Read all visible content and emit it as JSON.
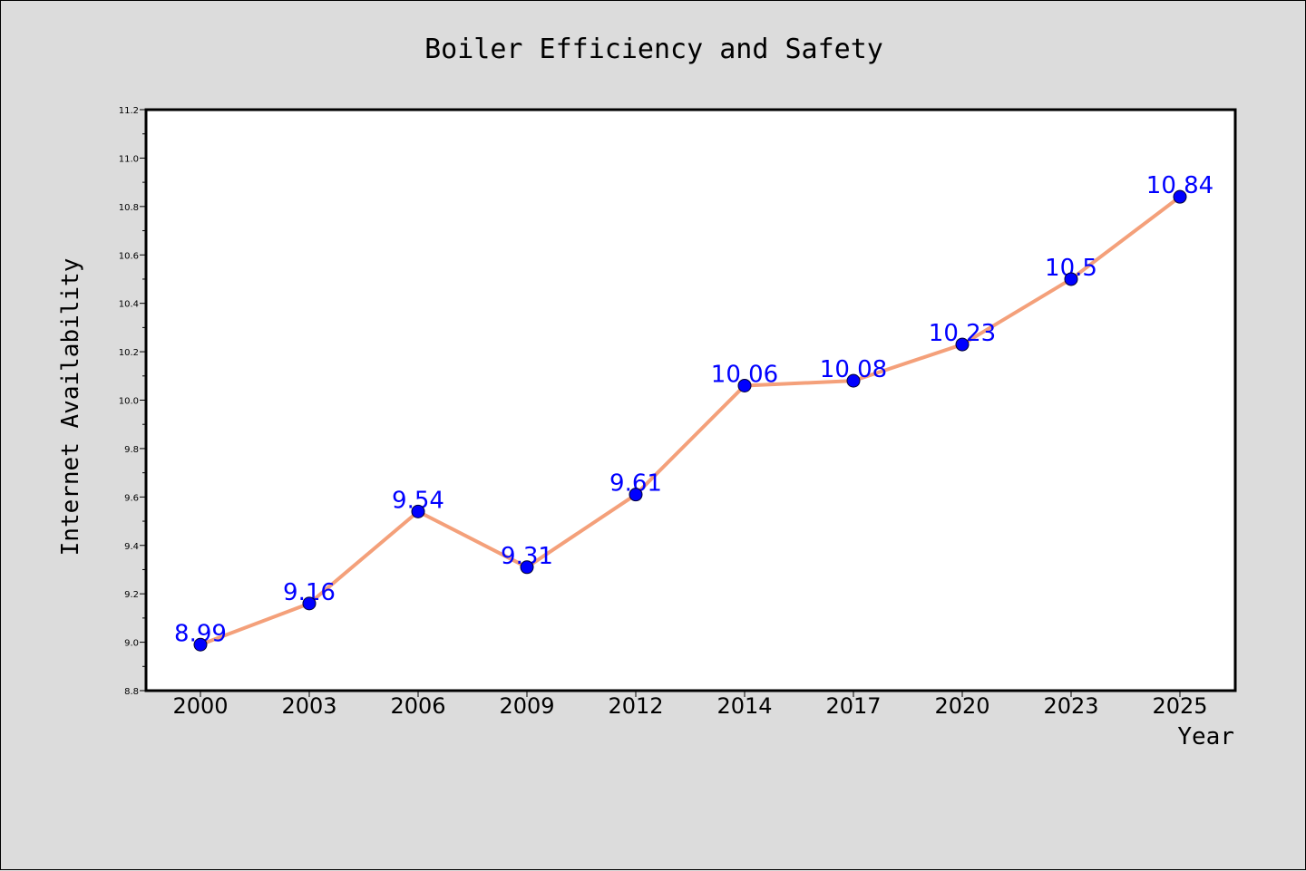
{
  "chart_data": {
    "type": "line",
    "title": "Boiler Efficiency and Safety",
    "xlabel": "Year",
    "ylabel": "Internet Availability",
    "categories": [
      "2000",
      "2003",
      "2006",
      "2009",
      "2012",
      "2014",
      "2017",
      "2020",
      "2023",
      "2025"
    ],
    "series": [
      {
        "values": [
          8.99,
          9.16,
          9.54,
          9.31,
          9.61,
          10.06,
          10.08,
          10.23,
          10.5,
          10.84
        ],
        "labels": [
          "8.99",
          "9.16",
          "9.54",
          "9.31",
          "9.61",
          "10.06",
          "10.08",
          "10.23",
          "10.5",
          "10.84"
        ]
      }
    ],
    "ylim": [
      8.8,
      11.2
    ],
    "yticks": [
      "8.8",
      "9.0",
      "9.2",
      "9.4",
      "9.6",
      "9.8",
      "10.0",
      "10.2",
      "10.4",
      "10.6",
      "10.8",
      "11.0",
      "11.2"
    ],
    "grid": false,
    "colors": {
      "background": "#dcdcdc",
      "plot_background": "#ffffff",
      "line": "#f4a07a",
      "marker": "#0000ff",
      "data_label": "#0000ff"
    }
  }
}
